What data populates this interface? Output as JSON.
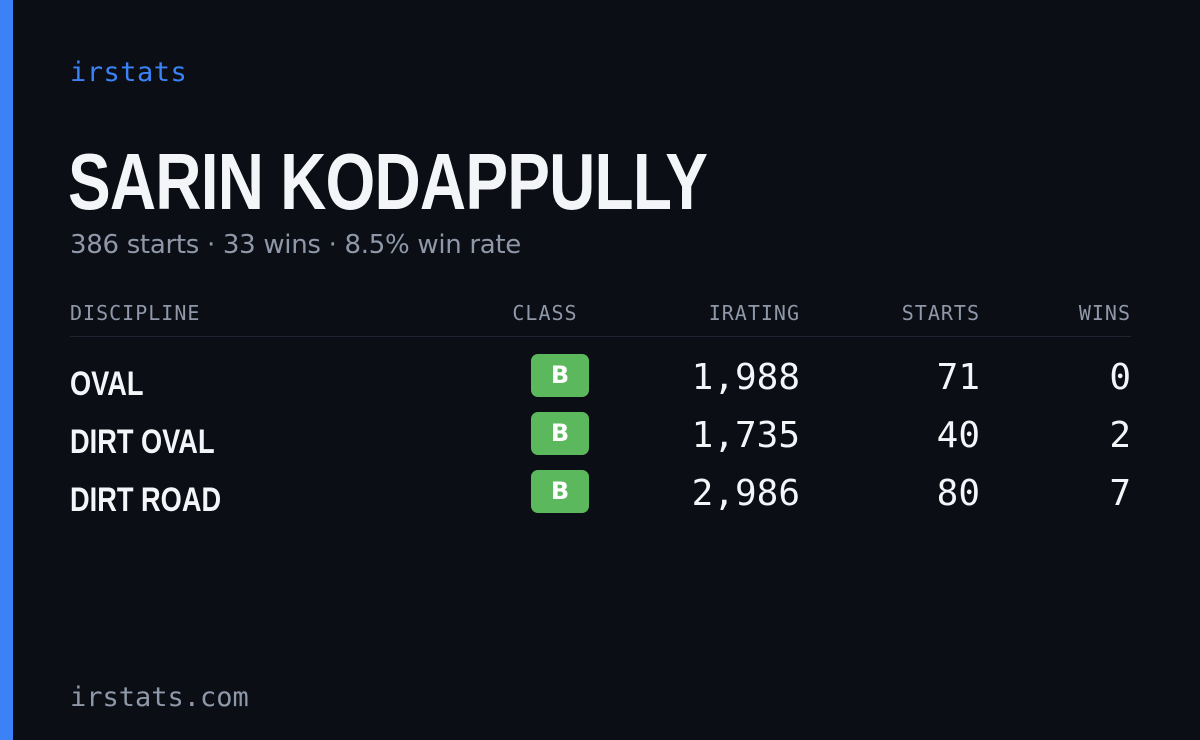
{
  "brand": "irstats",
  "driver": {
    "name": "SARIN KODAPPULLY",
    "summary": "386 starts · 33 wins · 8.5% win rate"
  },
  "table": {
    "headers": {
      "discipline": "DISCIPLINE",
      "class": "CLASS",
      "irating": "IRATING",
      "starts": "STARTS",
      "wins": "WINS"
    },
    "rows": [
      {
        "discipline": "OVAL",
        "class": "B",
        "irating": "1,988",
        "starts": "71",
        "wins": "0"
      },
      {
        "discipline": "DIRT OVAL",
        "class": "B",
        "irating": "1,735",
        "starts": "40",
        "wins": "2"
      },
      {
        "discipline": "DIRT ROAD",
        "class": "B",
        "irating": "2,986",
        "starts": "80",
        "wins": "7"
      }
    ]
  },
  "footer": "irstats.com",
  "colors": {
    "background": "#0b0e15",
    "accent": "#3b82f6",
    "class_b": "#5cb85c",
    "muted_text": "#8f98a8",
    "primary_text": "#f4f5f8"
  }
}
